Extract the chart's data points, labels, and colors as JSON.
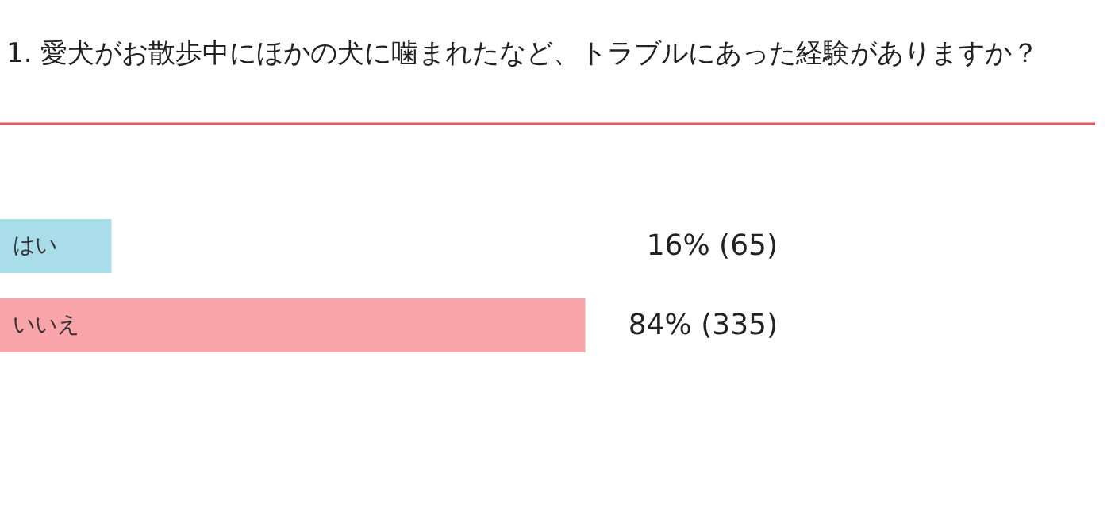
{
  "chart_data": {
    "type": "bar",
    "orientation": "horizontal",
    "title": "1. 愛犬がお散歩中にほかの犬に噛まれたなど、トラブルにあった経験がありますか？",
    "categories": [
      "はい",
      "いいえ"
    ],
    "values": [
      16,
      84
    ],
    "colors": [
      "#a9dde9",
      "#f9a4a9"
    ],
    "value_labels": [
      "16% (65)",
      "84% (335)"
    ],
    "tick_labels": "y"
  }
}
